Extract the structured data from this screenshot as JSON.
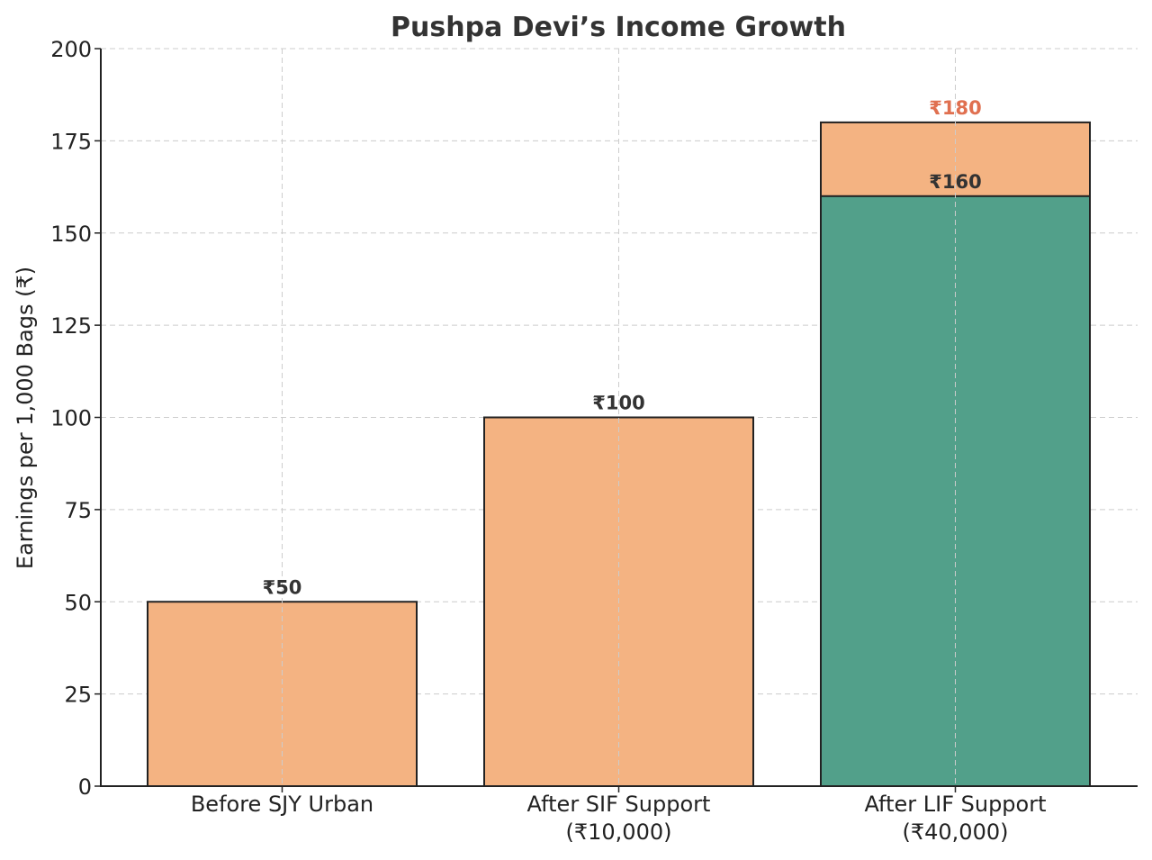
{
  "chart_data": {
    "type": "bar",
    "title": "Pushpa Devi’s Income Growth",
    "xlabel": "",
    "ylabel": "Earnings per 1,000 Bags (₹)",
    "ylim": [
      0,
      200
    ],
    "yticks": [
      0,
      25,
      50,
      75,
      100,
      125,
      150,
      175,
      200
    ],
    "grid": true,
    "categories": [
      [
        "Before SJY Urban"
      ],
      [
        "After SIF Support",
        "(₹10,000)"
      ],
      [
        "After LIF Support",
        "(₹40,000)"
      ]
    ],
    "series": [
      {
        "values": [
          50,
          100,
          180
        ],
        "color": "#f4b382",
        "labels": [
          "₹50",
          "₹100",
          "₹180"
        ],
        "label_colors": [
          "#333333",
          "#333333",
          "#e07050"
        ]
      },
      {
        "values": [
          null,
          null,
          160
        ],
        "color": "#52a08a",
        "labels": [
          null,
          null,
          "₹160"
        ],
        "label_colors": [
          null,
          null,
          "#333333"
        ]
      }
    ]
  }
}
